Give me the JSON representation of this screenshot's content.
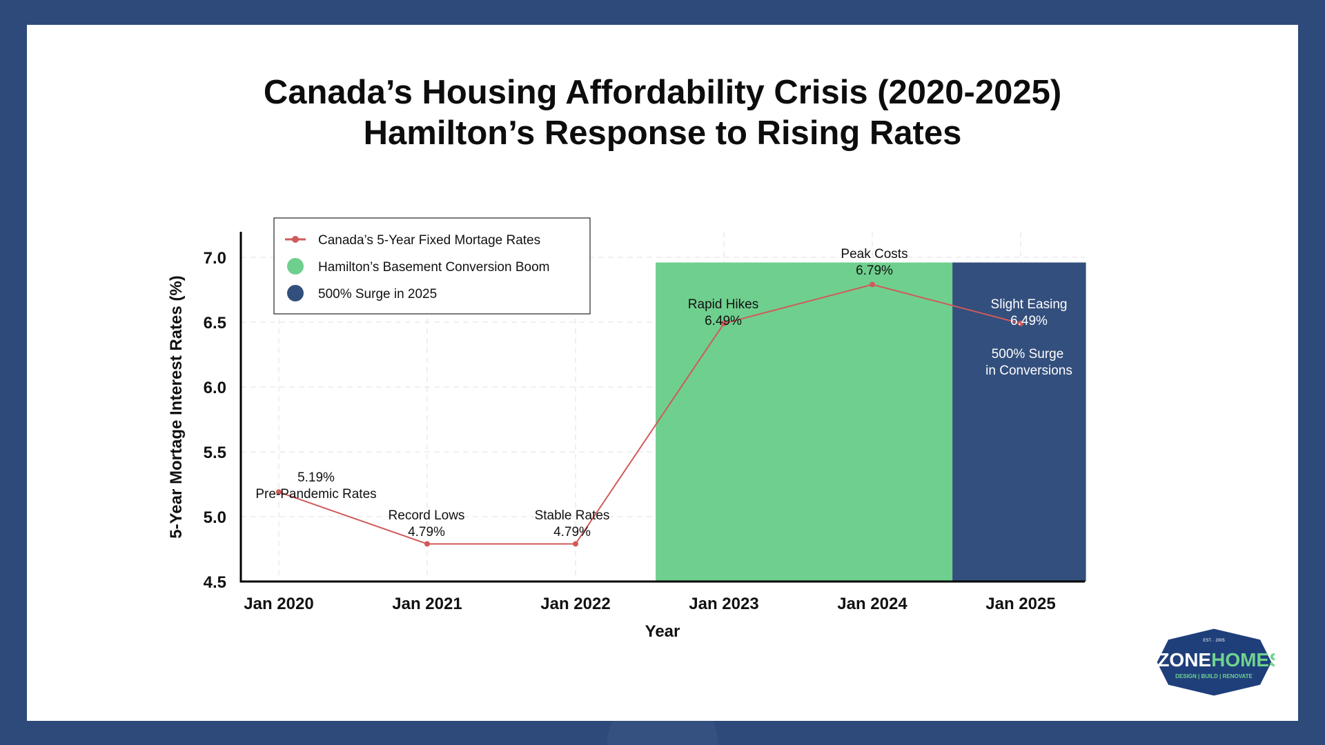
{
  "title_line1": "Canada’s Housing Affordability Crisis (2020-2025)",
  "title_line2": "Hamilton’s Response to Rising Rates",
  "chart_data": {
    "type": "line",
    "xlabel": "Year",
    "ylabel": "5-Year Mortage Interest Rates (%)",
    "x": [
      "Jan 2020",
      "Jan 2021",
      "Jan 2022",
      "Jan 2023",
      "Jan 2024",
      "Jan 2025"
    ],
    "ylim": [
      4.5,
      7.2
    ],
    "yticks": [
      "4.5",
      "5.0",
      "5.5",
      "6.0",
      "6.5",
      "7.0"
    ],
    "series": [
      {
        "name": "Canada’s 5-Year Fixed Mortage Rates",
        "color": "#d05a5a",
        "values": [
          5.19,
          4.79,
          4.79,
          6.49,
          6.79,
          6.49
        ]
      }
    ],
    "regions": [
      {
        "name": "Hamilton’s Basement Conversion Boom",
        "color": "#6fcf8e",
        "x_start": 2.54,
        "x_end": 4.54,
        "y_top": 6.96
      },
      {
        "name": "500% Surge in 2025",
        "color": "#334f7d",
        "x_start": 4.54,
        "x_end": 5.44,
        "y_top": 6.96
      }
    ],
    "annotations": [
      {
        "text": "5.19%",
        "text2": "Pre-Pandemic Rates",
        "index": 0
      },
      {
        "text": "Record Lows",
        "text2": "4.79%",
        "index": 1
      },
      {
        "text": "Stable Rates",
        "text2": "4.79%",
        "index": 2
      },
      {
        "text": "Rapid Hikes",
        "text2": "6.49%",
        "index": 3
      },
      {
        "text": "Peak Costs",
        "text2": "6.79%",
        "index": 4
      },
      {
        "text": "Slight Easing",
        "text2": "6.49%",
        "index": 5
      }
    ],
    "surge_note_line1": "500% Surge",
    "surge_note_line2": "in Conversions",
    "legend": [
      {
        "label": "Canada’s 5-Year Fixed Mortage Rates",
        "kind": "line",
        "color": "#d05a5a"
      },
      {
        "label": "Hamilton’s Basement Conversion Boom",
        "kind": "dot",
        "color": "#6fcf8e"
      },
      {
        "label": "500% Surge in 2025",
        "kind": "dot",
        "color": "#334f7d"
      }
    ],
    "legend_position": "top-left"
  },
  "logo": {
    "est": "EST. · 2005",
    "name_part1": "ZZONE",
    "name_part2": "HOMES",
    "tagline": "DESIGN | BUILD | RENOVATE"
  },
  "colors": {
    "frame": "#2d4a7a",
    "logo_bg": "#1f3f7a",
    "logo_green": "#6fd38e"
  }
}
